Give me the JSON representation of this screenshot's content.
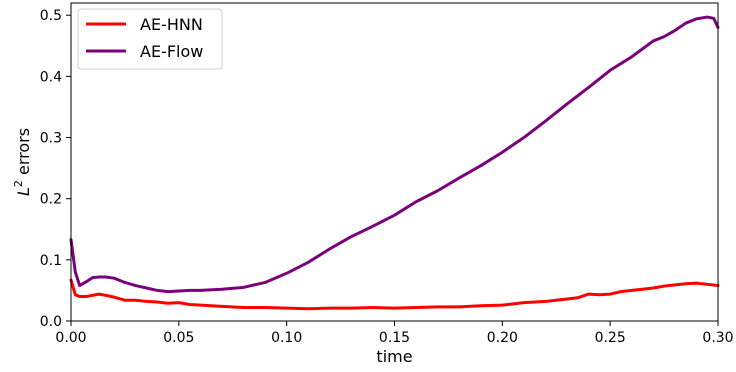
{
  "chart_data": {
    "type": "line",
    "title": "",
    "xlabel": "time",
    "ylabel_base": "L",
    "ylabel_sup": "2",
    "ylabel_rest": " errors",
    "xlim": [
      0.0,
      0.3
    ],
    "ylim": [
      0.0,
      0.52
    ],
    "xticks": [
      0.0,
      0.05,
      0.1,
      0.15,
      0.2,
      0.25,
      0.3
    ],
    "xtick_labels": [
      "0.00",
      "0.05",
      "0.10",
      "0.15",
      "0.20",
      "0.25",
      "0.30"
    ],
    "yticks": [
      0.0,
      0.1,
      0.2,
      0.3,
      0.4,
      0.5
    ],
    "ytick_labels": [
      "0.0",
      "0.1",
      "0.2",
      "0.3",
      "0.4",
      "0.5"
    ],
    "grid": false,
    "legend_position": "top-left",
    "series": [
      {
        "name": "AE-HNN",
        "color": "#ff0000",
        "x": [
          0.0,
          0.002,
          0.004,
          0.007,
          0.01,
          0.013,
          0.016,
          0.02,
          0.025,
          0.03,
          0.035,
          0.04,
          0.045,
          0.05,
          0.055,
          0.06,
          0.07,
          0.08,
          0.09,
          0.1,
          0.11,
          0.12,
          0.13,
          0.14,
          0.15,
          0.16,
          0.17,
          0.18,
          0.19,
          0.2,
          0.21,
          0.22,
          0.23,
          0.235,
          0.24,
          0.245,
          0.25,
          0.255,
          0.26,
          0.265,
          0.27,
          0.275,
          0.28,
          0.285,
          0.29,
          0.295,
          0.3
        ],
        "y": [
          0.067,
          0.043,
          0.04,
          0.04,
          0.042,
          0.044,
          0.042,
          0.039,
          0.034,
          0.034,
          0.032,
          0.031,
          0.029,
          0.03,
          0.027,
          0.026,
          0.024,
          0.022,
          0.022,
          0.021,
          0.02,
          0.021,
          0.021,
          0.022,
          0.021,
          0.022,
          0.023,
          0.023,
          0.025,
          0.026,
          0.03,
          0.032,
          0.036,
          0.038,
          0.044,
          0.043,
          0.044,
          0.048,
          0.05,
          0.052,
          0.054,
          0.057,
          0.059,
          0.061,
          0.062,
          0.06,
          0.058
        ]
      },
      {
        "name": "AE-Flow",
        "color": "#7b007b",
        "x": [
          0.0,
          0.002,
          0.004,
          0.007,
          0.01,
          0.013,
          0.016,
          0.02,
          0.025,
          0.03,
          0.035,
          0.04,
          0.045,
          0.05,
          0.055,
          0.06,
          0.07,
          0.08,
          0.09,
          0.1,
          0.11,
          0.12,
          0.13,
          0.14,
          0.15,
          0.16,
          0.17,
          0.18,
          0.19,
          0.2,
          0.21,
          0.22,
          0.23,
          0.24,
          0.25,
          0.26,
          0.27,
          0.275,
          0.28,
          0.285,
          0.29,
          0.295,
          0.298,
          0.3
        ],
        "y": [
          0.133,
          0.08,
          0.058,
          0.064,
          0.071,
          0.072,
          0.072,
          0.07,
          0.063,
          0.058,
          0.054,
          0.05,
          0.048,
          0.049,
          0.05,
          0.05,
          0.052,
          0.055,
          0.063,
          0.078,
          0.096,
          0.118,
          0.138,
          0.155,
          0.173,
          0.195,
          0.213,
          0.234,
          0.254,
          0.276,
          0.3,
          0.327,
          0.355,
          0.382,
          0.41,
          0.432,
          0.458,
          0.465,
          0.475,
          0.487,
          0.494,
          0.497,
          0.495,
          0.48
        ]
      }
    ]
  }
}
